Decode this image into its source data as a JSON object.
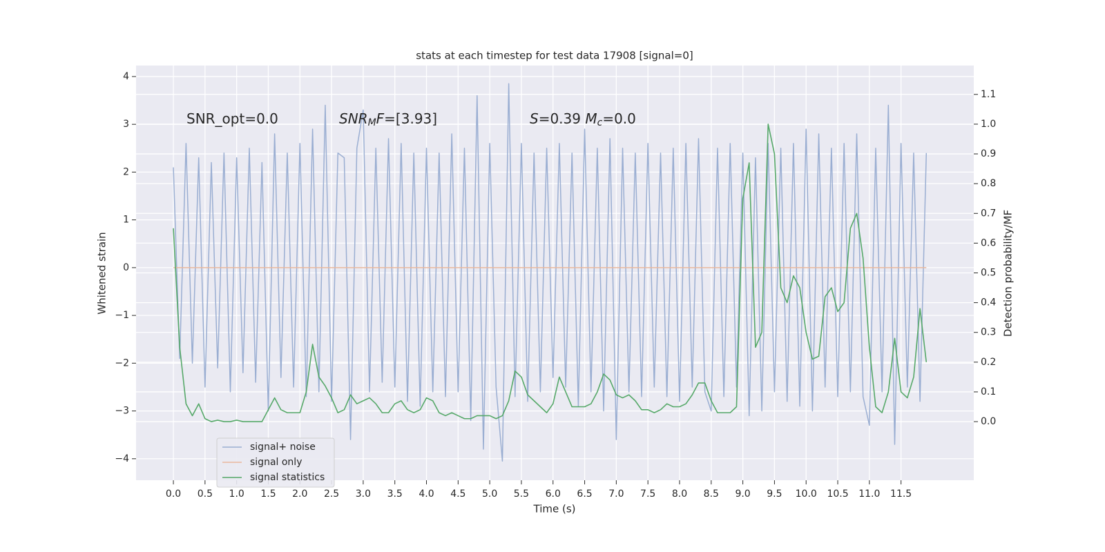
{
  "chart_data": {
    "type": "line",
    "title": "stats at each timestep for test data 17908 [signal=0]",
    "xlabel": "Time (s)",
    "ylabel": "Whitened strain",
    "y2label": "Detection probability/MF",
    "annotations": [
      [
        "SNR_opt=0.0"
      ],
      [
        "SNR",
        "M",
        "F=[3.93]"
      ],
      [
        "S",
        "=0.39   ",
        "M",
        "c",
        "=0.0"
      ]
    ],
    "x": [
      0.0,
      0.1,
      0.2,
      0.3,
      0.4,
      0.5,
      0.6,
      0.7,
      0.8,
      0.9,
      1.0,
      1.1,
      1.2,
      1.3,
      1.4,
      1.5,
      1.6,
      1.7,
      1.8,
      1.9,
      2.0,
      2.1,
      2.2,
      2.3,
      2.4,
      2.5,
      2.6,
      2.7,
      2.8,
      2.9,
      3.0,
      3.1,
      3.2,
      3.3,
      3.4,
      3.5,
      3.6,
      3.7,
      3.8,
      3.9,
      4.0,
      4.1,
      4.2,
      4.3,
      4.4,
      4.5,
      4.6,
      4.7,
      4.8,
      4.9,
      5.0,
      5.1,
      5.2,
      5.3,
      5.4,
      5.5,
      5.6,
      5.7,
      5.8,
      5.9,
      6.0,
      6.1,
      6.2,
      6.3,
      6.4,
      6.5,
      6.6,
      6.7,
      6.8,
      6.9,
      7.0,
      7.1,
      7.2,
      7.3,
      7.4,
      7.5,
      7.6,
      7.7,
      7.8,
      7.9,
      8.0,
      8.1,
      8.2,
      8.3,
      8.4,
      8.5,
      8.6,
      8.7,
      8.8,
      8.9,
      9.0,
      9.1,
      9.2,
      9.3,
      9.4,
      9.5,
      9.6,
      9.7,
      9.8,
      9.9,
      10.0,
      10.1,
      10.2,
      10.3,
      10.4,
      10.5,
      10.6,
      10.7,
      10.8,
      10.9,
      11.0,
      11.1,
      11.2,
      11.3,
      11.4,
      11.5,
      11.6,
      11.7,
      11.8,
      11.9
    ],
    "series": [
      {
        "name": "signal+ noise",
        "color": "#9aaed2",
        "values": [
          2.1,
          -1.9,
          2.6,
          -2.0,
          2.3,
          -2.5,
          2.2,
          -2.1,
          2.4,
          -2.6,
          2.3,
          -2.2,
          2.5,
          -2.4,
          2.2,
          -3.0,
          2.8,
          -2.3,
          2.4,
          -2.5,
          2.6,
          -2.7,
          2.9,
          -2.6,
          3.4,
          -2.8,
          2.4,
          2.3,
          -3.6,
          2.5,
          3.3,
          -2.6,
          2.5,
          -2.4,
          2.7,
          -2.5,
          2.6,
          -2.8,
          2.4,
          -2.9,
          2.5,
          -2.6,
          2.4,
          -2.7,
          2.8,
          -2.6,
          2.5,
          -3.2,
          3.6,
          -3.8,
          2.6,
          -2.5,
          -4.05,
          3.85,
          -2.7,
          2.6,
          -2.8,
          2.4,
          -2.6,
          2.5,
          -2.3,
          2.6,
          -2.5,
          2.4,
          -2.9,
          2.9,
          -2.6,
          2.5,
          -3.0,
          2.7,
          -3.6,
          2.5,
          -2.6,
          2.4,
          -2.7,
          2.6,
          -2.5,
          2.4,
          -2.7,
          2.5,
          -2.8,
          2.6,
          -2.5,
          2.7,
          -2.6,
          -3.0,
          2.5,
          -2.7,
          2.6,
          -2.5,
          2.4,
          -3.1,
          2.3,
          -3.0,
          2.6,
          -2.6,
          2.5,
          -2.8,
          2.6,
          -2.9,
          2.9,
          -3.0,
          2.8,
          -2.5,
          2.5,
          -2.7,
          2.6,
          -2.6,
          2.8,
          -2.7,
          -3.3,
          2.5,
          -2.6,
          3.4,
          -3.7,
          2.6,
          -2.5,
          2.4,
          -2.8,
          2.4
        ]
      },
      {
        "name": "signal only",
        "color": "#e9b79d",
        "values": [
          0,
          0,
          0,
          0,
          0,
          0,
          0,
          0,
          0,
          0,
          0,
          0,
          0,
          0,
          0,
          0,
          0,
          0,
          0,
          0,
          0,
          0,
          0,
          0,
          0,
          0,
          0,
          0,
          0,
          0,
          0,
          0,
          0,
          0,
          0,
          0,
          0,
          0,
          0,
          0,
          0,
          0,
          0,
          0,
          0,
          0,
          0,
          0,
          0,
          0,
          0,
          0,
          0,
          0,
          0,
          0,
          0,
          0,
          0,
          0,
          0,
          0,
          0,
          0,
          0,
          0,
          0,
          0,
          0,
          0,
          0,
          0,
          0,
          0,
          0,
          0,
          0,
          0,
          0,
          0,
          0,
          0,
          0,
          0,
          0,
          0,
          0,
          0,
          0,
          0,
          0,
          0,
          0,
          0,
          0,
          0,
          0,
          0,
          0,
          0,
          0,
          0,
          0,
          0,
          0,
          0,
          0,
          0,
          0,
          0,
          0,
          0,
          0,
          0,
          0,
          0,
          0,
          0,
          0,
          0
        ]
      },
      {
        "name": "signal statistics",
        "color": "#55a868",
        "axis": "y2",
        "values": [
          0.65,
          0.25,
          0.06,
          0.02,
          0.06,
          0.01,
          0.0,
          0.005,
          0.0,
          0.0,
          0.005,
          0.0,
          0.0,
          0.0,
          0.0,
          0.04,
          0.08,
          0.04,
          0.03,
          0.03,
          0.03,
          0.1,
          0.26,
          0.15,
          0.12,
          0.08,
          0.03,
          0.04,
          0.09,
          0.06,
          0.07,
          0.08,
          0.06,
          0.03,
          0.03,
          0.06,
          0.07,
          0.04,
          0.03,
          0.04,
          0.08,
          0.07,
          0.03,
          0.02,
          0.03,
          0.02,
          0.01,
          0.01,
          0.02,
          0.02,
          0.02,
          0.01,
          0.02,
          0.07,
          0.17,
          0.15,
          0.09,
          0.07,
          0.05,
          0.03,
          0.06,
          0.15,
          0.1,
          0.05,
          0.05,
          0.05,
          0.06,
          0.1,
          0.16,
          0.14,
          0.09,
          0.08,
          0.09,
          0.07,
          0.04,
          0.04,
          0.03,
          0.04,
          0.06,
          0.05,
          0.05,
          0.06,
          0.09,
          0.13,
          0.13,
          0.07,
          0.03,
          0.03,
          0.03,
          0.05,
          0.75,
          0.87,
          0.25,
          0.3,
          1.0,
          0.9,
          0.45,
          0.4,
          0.49,
          0.45,
          0.3,
          0.21,
          0.22,
          0.42,
          0.45,
          0.37,
          0.4,
          0.65,
          0.7,
          0.55,
          0.25,
          0.05,
          0.03,
          0.1,
          0.28,
          0.1,
          0.08,
          0.15,
          0.38,
          0.2
        ]
      }
    ],
    "xlim": [
      -0.59,
      12.65
    ],
    "ylim": [
      -4.45,
      4.23
    ],
    "y2lim": [
      -0.197,
      1.197
    ],
    "xticks": [
      {
        "value": 0,
        "label": "0.0"
      },
      0.5,
      {
        "value": 1,
        "label": "1.0"
      },
      1.5,
      {
        "value": 2,
        "label": "2.0"
      },
      2.5,
      {
        "value": 3,
        "label": "3.0"
      },
      3.5,
      {
        "value": 4,
        "label": "4.0"
      },
      4.5,
      {
        "value": 5,
        "label": "5.0"
      },
      5.5,
      {
        "value": 6,
        "label": "6.0"
      },
      6.5,
      {
        "value": 7,
        "label": "7.0"
      },
      7.5,
      {
        "value": 8,
        "label": "8.0"
      },
      8.5,
      {
        "value": 9,
        "label": "9.0"
      },
      9.5,
      {
        "value": 10,
        "label": "10.0"
      },
      10.5,
      {
        "value": 11,
        "label": "11.0"
      },
      11.5
    ],
    "yticks": [
      {
        "value": -4,
        "label": "−4"
      },
      {
        "value": -3,
        "label": "−3"
      },
      {
        "value": -2,
        "label": "−2"
      },
      {
        "value": -1,
        "label": "−1"
      },
      0,
      1,
      2,
      3,
      4
    ],
    "y2ticks": [
      {
        "value": 0,
        "label": "0.0"
      },
      0.1,
      0.2,
      0.3,
      0.4,
      0.5,
      0.6,
      0.7,
      0.8,
      0.9,
      {
        "value": 1,
        "label": "1.0"
      },
      1.1
    ],
    "grid": true,
    "legend": "lower left"
  }
}
